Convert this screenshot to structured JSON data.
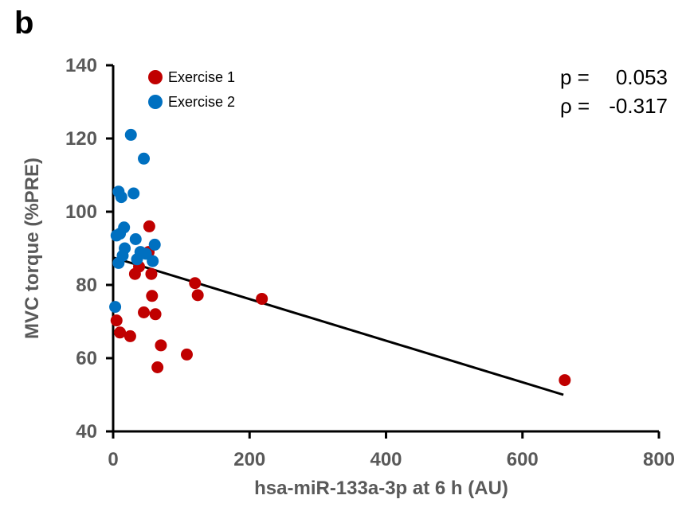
{
  "panel_label": "b",
  "chart_data": {
    "type": "scatter",
    "xlabel": "hsa-miR-133a-3p at 6 h (AU)",
    "ylabel": "MVC torque (%PRE)",
    "xlim": [
      0,
      800
    ],
    "ylim": [
      40,
      140
    ],
    "x_ticks": [
      "0",
      "200",
      "400",
      "600",
      "800"
    ],
    "y_ticks": [
      "40",
      "60",
      "80",
      "100",
      "120",
      "140"
    ],
    "grid": false,
    "legend_position": "top-left",
    "series": [
      {
        "name": "Exercise 1",
        "color": "#c00000",
        "points": [
          {
            "x": 5,
            "y": 70.3
          },
          {
            "x": 10,
            "y": 67
          },
          {
            "x": 25,
            "y": 66
          },
          {
            "x": 32,
            "y": 83
          },
          {
            "x": 38,
            "y": 85
          },
          {
            "x": 45,
            "y": 72.5
          },
          {
            "x": 52,
            "y": 89
          },
          {
            "x": 53,
            "y": 96
          },
          {
            "x": 56,
            "y": 83
          },
          {
            "x": 57,
            "y": 77
          },
          {
            "x": 62,
            "y": 72
          },
          {
            "x": 65,
            "y": 57.5
          },
          {
            "x": 70,
            "y": 63.5
          },
          {
            "x": 108,
            "y": 61
          },
          {
            "x": 120,
            "y": 80.5
          },
          {
            "x": 124,
            "y": 77.2
          },
          {
            "x": 218,
            "y": 76.2
          },
          {
            "x": 662,
            "y": 54
          }
        ]
      },
      {
        "name": "Exercise 2",
        "color": "#0070c0",
        "points": [
          {
            "x": 3,
            "y": 74
          },
          {
            "x": 5,
            "y": 93.5
          },
          {
            "x": 8,
            "y": 105.5
          },
          {
            "x": 10,
            "y": 94
          },
          {
            "x": 12,
            "y": 104
          },
          {
            "x": 14,
            "y": 88
          },
          {
            "x": 16,
            "y": 95.7
          },
          {
            "x": 17,
            "y": 90
          },
          {
            "x": 26,
            "y": 121
          },
          {
            "x": 30,
            "y": 105
          },
          {
            "x": 33,
            "y": 92.5
          },
          {
            "x": 35,
            "y": 87
          },
          {
            "x": 40,
            "y": 89
          },
          {
            "x": 45,
            "y": 114.5
          },
          {
            "x": 48,
            "y": 88.5
          },
          {
            "x": 58,
            "y": 86.5
          },
          {
            "x": 61,
            "y": 91
          },
          {
            "x": 8,
            "y": 86
          }
        ]
      }
    ],
    "trendline": {
      "x": [
        0,
        660
      ],
      "y": [
        87.5,
        50
      ]
    },
    "annotations": [
      {
        "label": "p =",
        "value": "0.053"
      },
      {
        "label": "ρ =",
        "value": "-0.317"
      }
    ]
  }
}
